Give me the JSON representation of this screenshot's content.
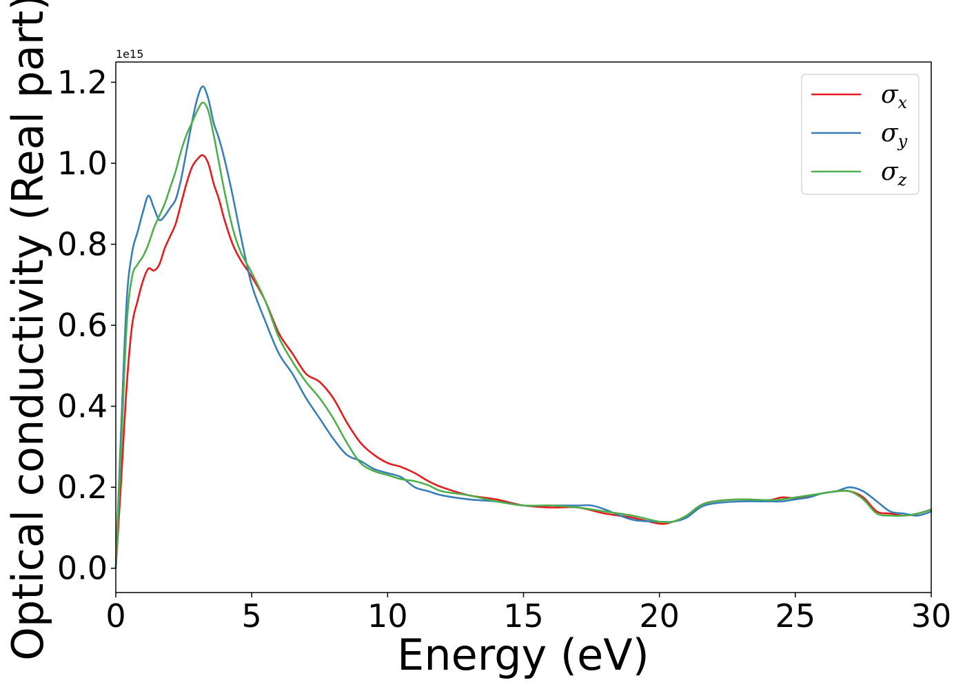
{
  "chart_data": {
    "type": "line",
    "xlabel": "Energy (eV)",
    "ylabel": "Optical conductivity (Real part)",
    "y_offset_label": "1e15",
    "xlim": [
      0,
      30
    ],
    "ylim": [
      -0.06,
      1.25
    ],
    "xticks": [
      0,
      5,
      10,
      15,
      20,
      25,
      30
    ],
    "xtick_labels": [
      "0",
      "5",
      "10",
      "15",
      "20",
      "25",
      "30"
    ],
    "yticks": [
      0.0,
      0.2,
      0.4,
      0.6,
      0.8,
      1.0,
      1.2
    ],
    "ytick_labels": [
      "0.0",
      "0.2",
      "0.4",
      "0.6",
      "0.8",
      "1.0",
      "1.2"
    ],
    "grid": false,
    "legend_position": "top-right",
    "series": [
      {
        "name": "σx",
        "symbol": "σ",
        "subscript": "x",
        "color": "#e41a1c",
        "x": [
          0,
          0.2,
          0.4,
          0.6,
          0.8,
          1.0,
          1.2,
          1.4,
          1.6,
          1.8,
          2.0,
          2.2,
          2.4,
          2.6,
          2.8,
          3.0,
          3.2,
          3.4,
          3.6,
          3.8,
          4.0,
          4.3,
          4.6,
          5.0,
          5.5,
          6.0,
          6.5,
          7.0,
          7.5,
          8.0,
          8.5,
          9.0,
          9.5,
          10.0,
          10.5,
          11.0,
          11.5,
          12.0,
          13.0,
          14.0,
          15.0,
          16.0,
          17.0,
          18.0,
          19.0,
          20.0,
          20.5,
          21.0,
          21.5,
          22.0,
          23.0,
          24.0,
          24.5,
          25.0,
          25.5,
          26.0,
          26.5,
          27.0,
          27.5,
          28.0,
          28.5,
          29.0,
          29.5,
          30.0
        ],
        "y": [
          0.0,
          0.22,
          0.45,
          0.6,
          0.66,
          0.71,
          0.74,
          0.735,
          0.75,
          0.79,
          0.82,
          0.85,
          0.9,
          0.95,
          0.99,
          1.01,
          1.02,
          1.0,
          0.95,
          0.91,
          0.86,
          0.8,
          0.76,
          0.72,
          0.66,
          0.58,
          0.53,
          0.48,
          0.46,
          0.42,
          0.36,
          0.31,
          0.28,
          0.26,
          0.25,
          0.235,
          0.215,
          0.2,
          0.18,
          0.17,
          0.155,
          0.15,
          0.15,
          0.135,
          0.125,
          0.11,
          0.115,
          0.13,
          0.155,
          0.165,
          0.17,
          0.168,
          0.175,
          0.173,
          0.178,
          0.185,
          0.19,
          0.19,
          0.175,
          0.14,
          0.135,
          0.13,
          0.135,
          0.145
        ]
      },
      {
        "name": "σy",
        "symbol": "σ",
        "subscript": "y",
        "color": "#377eb8",
        "x": [
          0,
          0.2,
          0.4,
          0.6,
          0.8,
          1.0,
          1.2,
          1.4,
          1.6,
          1.8,
          2.0,
          2.2,
          2.4,
          2.6,
          2.8,
          3.0,
          3.2,
          3.4,
          3.6,
          3.8,
          4.0,
          4.3,
          4.6,
          5.0,
          5.5,
          6.0,
          6.5,
          7.0,
          7.5,
          8.0,
          8.5,
          9.0,
          9.5,
          10.0,
          10.5,
          11.0,
          11.5,
          12.0,
          13.0,
          14.0,
          15.0,
          16.0,
          17.0,
          17.5,
          18.0,
          19.0,
          20.0,
          20.5,
          21.0,
          21.5,
          22.0,
          23.0,
          24.0,
          24.5,
          25.0,
          25.5,
          26.0,
          26.5,
          27.0,
          27.5,
          28.0,
          28.5,
          29.0,
          29.5,
          30.0
        ],
        "y": [
          0.0,
          0.35,
          0.66,
          0.78,
          0.83,
          0.88,
          0.92,
          0.89,
          0.86,
          0.87,
          0.89,
          0.91,
          0.96,
          1.03,
          1.1,
          1.16,
          1.19,
          1.16,
          1.1,
          1.06,
          1.01,
          0.92,
          0.82,
          0.7,
          0.61,
          0.53,
          0.48,
          0.42,
          0.37,
          0.32,
          0.28,
          0.265,
          0.245,
          0.235,
          0.225,
          0.2,
          0.19,
          0.18,
          0.17,
          0.165,
          0.155,
          0.155,
          0.155,
          0.155,
          0.145,
          0.12,
          0.115,
          0.115,
          0.125,
          0.15,
          0.16,
          0.165,
          0.165,
          0.165,
          0.17,
          0.175,
          0.185,
          0.19,
          0.2,
          0.19,
          0.165,
          0.14,
          0.135,
          0.13,
          0.14
        ]
      },
      {
        "name": "σz",
        "symbol": "σ",
        "subscript": "z",
        "color": "#4daf4a",
        "x": [
          0,
          0.2,
          0.4,
          0.6,
          0.8,
          1.0,
          1.2,
          1.4,
          1.6,
          1.8,
          2.0,
          2.2,
          2.4,
          2.6,
          2.8,
          3.0,
          3.2,
          3.4,
          3.6,
          3.8,
          4.0,
          4.3,
          4.6,
          5.0,
          5.5,
          6.0,
          6.5,
          7.0,
          7.5,
          8.0,
          8.5,
          9.0,
          9.5,
          10.0,
          10.5,
          11.0,
          11.5,
          12.0,
          13.0,
          14.0,
          15.0,
          16.0,
          17.0,
          18.0,
          19.0,
          20.0,
          20.5,
          21.0,
          21.5,
          22.0,
          23.0,
          24.0,
          24.5,
          25.0,
          25.5,
          26.0,
          26.5,
          27.0,
          27.5,
          28.0,
          28.5,
          29.0,
          29.5,
          30.0
        ],
        "y": [
          0.0,
          0.3,
          0.6,
          0.72,
          0.75,
          0.77,
          0.8,
          0.84,
          0.87,
          0.9,
          0.94,
          0.98,
          1.03,
          1.07,
          1.1,
          1.13,
          1.15,
          1.13,
          1.07,
          1.0,
          0.93,
          0.84,
          0.78,
          0.73,
          0.66,
          0.57,
          0.51,
          0.46,
          0.42,
          0.37,
          0.31,
          0.26,
          0.24,
          0.23,
          0.22,
          0.215,
          0.205,
          0.19,
          0.18,
          0.165,
          0.155,
          0.155,
          0.15,
          0.14,
          0.13,
          0.115,
          0.115,
          0.13,
          0.155,
          0.165,
          0.17,
          0.168,
          0.17,
          0.175,
          0.18,
          0.185,
          0.19,
          0.19,
          0.17,
          0.135,
          0.13,
          0.13,
          0.135,
          0.145
        ]
      }
    ]
  }
}
